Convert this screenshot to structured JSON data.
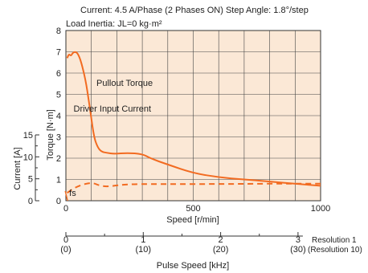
{
  "chart_data": {
    "type": "line",
    "header": {
      "line1": "Current: 4.5 A/Phase (2 Phases ON)   Step Angle: 1.8°/step",
      "line2": "Load Inertia: JL=0 kg·m²"
    },
    "x_axis": {
      "label": "Speed [r/min]",
      "range": [
        0,
        1000
      ],
      "ticks": [
        "0",
        "500",
        "1000"
      ]
    },
    "torque_axis": {
      "label": "Torque [N·m]",
      "range": [
        0,
        8
      ],
      "ticks": [
        "0",
        "1",
        "2",
        "3",
        "4",
        "5",
        "6",
        "7",
        "8"
      ]
    },
    "current_axis": {
      "label": "Current [A]",
      "range": [
        0,
        15
      ],
      "ticks": [
        "0",
        "5",
        "10",
        "15"
      ]
    },
    "pulse_axis": {
      "label": "Pulse Speed [kHz]",
      "ticks_res1": [
        "0",
        "1",
        "2",
        "3"
      ],
      "ticks_res10": [
        "(0)",
        "(10)",
        "(20)",
        "(30)"
      ],
      "res1_label": "Resolution 1",
      "res10_label": "(Resolution 10)"
    },
    "series": [
      {
        "name": "Pullout Torque",
        "style": "solid",
        "color": "#f26b21",
        "x": [
          5,
          12,
          20,
          27,
          35,
          45,
          55,
          65,
          80,
          95,
          110,
          125,
          140,
          160,
          190,
          240,
          300,
          330,
          400,
          500,
          600,
          700,
          800,
          900,
          1000
        ],
        "y": [
          6.7,
          6.9,
          6.8,
          6.95,
          7.0,
          6.95,
          6.7,
          6.3,
          5.5,
          4.3,
          3.0,
          2.5,
          2.3,
          2.25,
          2.2,
          2.25,
          2.2,
          2.0,
          1.7,
          1.3,
          1.1,
          1.0,
          0.9,
          0.8,
          0.7
        ]
      },
      {
        "name": "Driver Input Current",
        "style": "dashed",
        "color": "#f26b21",
        "x": [
          5,
          30,
          60,
          90,
          110,
          130,
          160,
          200,
          260,
          400,
          600,
          800,
          1000
        ],
        "y": [
          1.8,
          2.8,
          3.6,
          4.0,
          4.0,
          3.5,
          3.2,
          3.5,
          3.8,
          3.8,
          3.8,
          3.9,
          3.9
        ]
      }
    ],
    "annotations": [
      {
        "text": "Pullout Torque",
        "x": 120,
        "y": 5.4
      },
      {
        "text": "Driver Input Current",
        "x": 30,
        "y": 5.7
      },
      {
        "text": "fs",
        "x": 215,
        "y": 0.15
      }
    ],
    "fs_marker": {
      "x": 215
    }
  }
}
